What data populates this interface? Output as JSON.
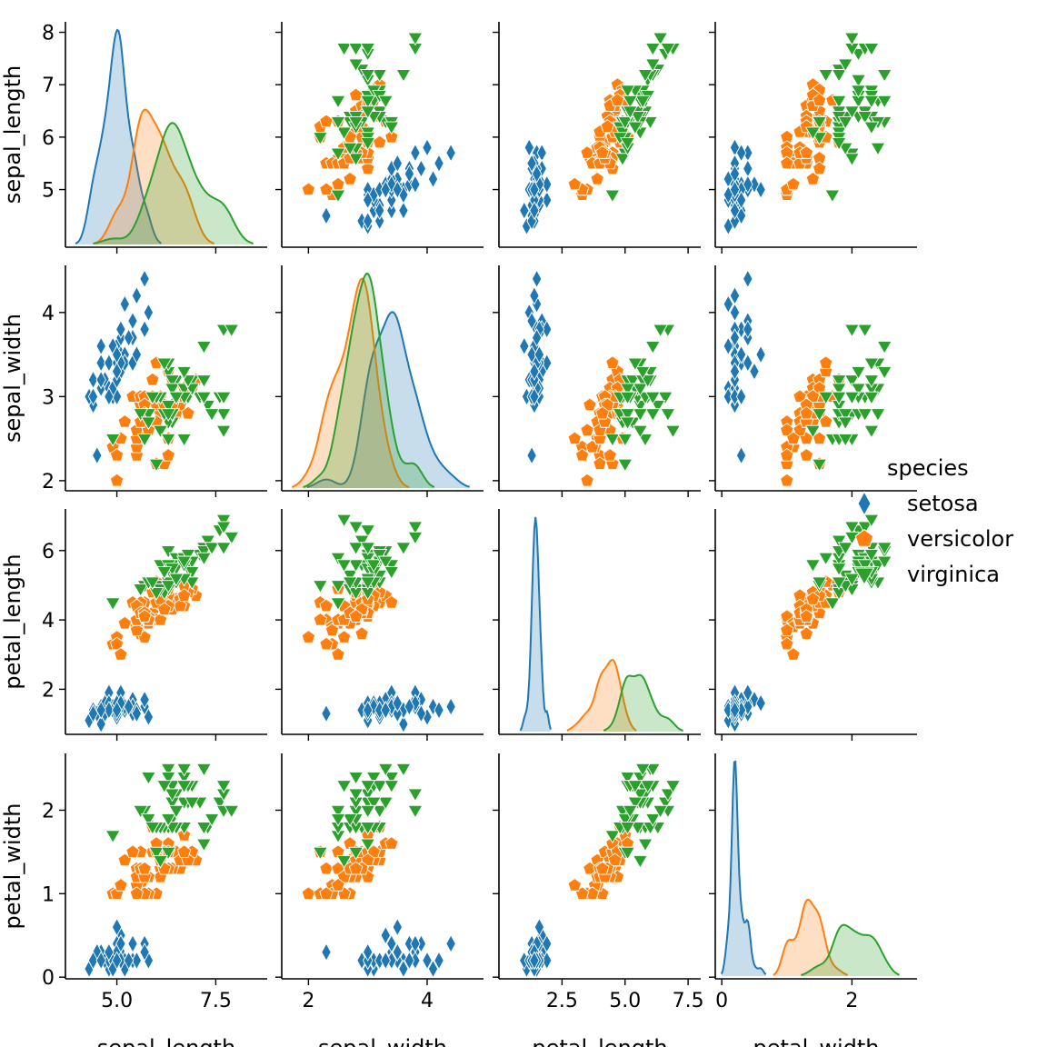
{
  "chart_data": {
    "type": "scatter",
    "kind": "pairplot",
    "variables": [
      "sepal_length",
      "sepal_width",
      "petal_length",
      "petal_width"
    ],
    "diagonal": "kde",
    "grid": false,
    "legend": {
      "title": "species",
      "position": "right",
      "entries": [
        {
          "name": "setosa",
          "color": "#1f77b4",
          "marker": "thin-diamond"
        },
        {
          "name": "versicolor",
          "color": "#ff7f0e",
          "marker": "pentagon"
        },
        {
          "name": "virginica",
          "color": "#2ca02c",
          "marker": "triangle-down"
        }
      ]
    },
    "axes": {
      "sepal_length": {
        "label": "sepal_length",
        "lim": [
          3.9,
          8.2
        ],
        "row_ticks": [
          5,
          6,
          7,
          8
        ],
        "col_ticks": [
          5.0,
          7.5
        ],
        "col_tick_labels": [
          "5.0",
          "7.5"
        ],
        "col_lim": [
          3.7,
          8.8
        ]
      },
      "sepal_width": {
        "label": "sepal_width",
        "lim": [
          1.88,
          4.56
        ],
        "row_ticks": [
          2,
          3,
          4
        ],
        "col_ticks": [
          2,
          4
        ],
        "col_tick_labels": [
          "2",
          "4"
        ],
        "col_lim": [
          1.55,
          4.95
        ]
      },
      "petal_length": {
        "label": "petal_length",
        "lim": [
          0.7,
          7.2
        ],
        "row_ticks": [
          2,
          4,
          6
        ],
        "col_ticks": [
          2.5,
          5.0,
          7.5
        ],
        "col_tick_labels": [
          "2.5",
          "5.0",
          "7.5"
        ],
        "col_lim": [
          0.0,
          8.0
        ]
      },
      "petal_width": {
        "label": "petal_width",
        "lim": [
          -0.02,
          2.68
        ],
        "row_ticks": [
          0,
          1,
          2
        ],
        "col_ticks": [
          0,
          2
        ],
        "col_tick_labels": [
          "0",
          "2"
        ],
        "col_lim": [
          -0.1,
          3.0
        ]
      }
    },
    "series": [
      {
        "name": "setosa",
        "sepal_length": [
          5.1,
          4.9,
          4.7,
          4.6,
          5.0,
          5.4,
          4.6,
          5.0,
          4.4,
          4.9,
          5.4,
          4.8,
          4.8,
          4.3,
          5.8,
          5.7,
          5.4,
          5.1,
          5.7,
          5.1,
          5.4,
          5.1,
          4.6,
          5.1,
          4.8,
          5.0,
          5.0,
          5.2,
          5.2,
          4.7,
          4.8,
          5.4,
          5.2,
          5.5,
          4.9,
          5.0,
          5.5,
          4.9,
          4.4,
          5.1,
          5.0,
          4.5,
          4.4,
          5.0,
          5.1,
          4.8,
          5.1,
          4.6,
          5.3,
          5.0
        ],
        "sepal_width": [
          3.5,
          3.0,
          3.2,
          3.1,
          3.6,
          3.9,
          3.4,
          3.4,
          2.9,
          3.1,
          3.7,
          3.4,
          3.0,
          3.0,
          4.0,
          4.4,
          3.9,
          3.5,
          3.8,
          3.8,
          3.4,
          3.7,
          3.6,
          3.3,
          3.4,
          3.0,
          3.4,
          3.5,
          3.4,
          3.2,
          3.1,
          3.4,
          4.1,
          4.2,
          3.1,
          3.2,
          3.5,
          3.6,
          3.0,
          3.4,
          3.5,
          2.3,
          3.2,
          3.5,
          3.8,
          3.0,
          3.8,
          3.2,
          3.7,
          3.3
        ],
        "petal_length": [
          1.4,
          1.4,
          1.3,
          1.5,
          1.4,
          1.7,
          1.4,
          1.5,
          1.4,
          1.5,
          1.5,
          1.6,
          1.4,
          1.1,
          1.2,
          1.5,
          1.3,
          1.4,
          1.7,
          1.5,
          1.7,
          1.5,
          1.0,
          1.7,
          1.9,
          1.6,
          1.6,
          1.5,
          1.4,
          1.6,
          1.6,
          1.5,
          1.5,
          1.4,
          1.5,
          1.2,
          1.3,
          1.4,
          1.3,
          1.5,
          1.3,
          1.3,
          1.3,
          1.6,
          1.9,
          1.4,
          1.6,
          1.4,
          1.5,
          1.4
        ],
        "petal_width": [
          0.2,
          0.2,
          0.2,
          0.2,
          0.2,
          0.4,
          0.3,
          0.2,
          0.2,
          0.1,
          0.2,
          0.2,
          0.1,
          0.1,
          0.2,
          0.4,
          0.4,
          0.3,
          0.3,
          0.3,
          0.2,
          0.4,
          0.2,
          0.5,
          0.2,
          0.2,
          0.4,
          0.2,
          0.2,
          0.2,
          0.2,
          0.4,
          0.1,
          0.2,
          0.2,
          0.2,
          0.2,
          0.1,
          0.2,
          0.2,
          0.3,
          0.3,
          0.2,
          0.6,
          0.4,
          0.3,
          0.2,
          0.2,
          0.2,
          0.2
        ]
      },
      {
        "name": "versicolor",
        "sepal_length": [
          7.0,
          6.4,
          6.9,
          5.5,
          6.5,
          5.7,
          6.3,
          4.9,
          6.6,
          5.2,
          5.0,
          5.9,
          6.0,
          6.1,
          5.6,
          6.7,
          5.6,
          5.8,
          6.2,
          5.6,
          5.9,
          6.1,
          6.3,
          6.1,
          6.4,
          6.6,
          6.8,
          6.7,
          6.0,
          5.7,
          5.5,
          5.5,
          5.8,
          6.0,
          5.4,
          6.0,
          6.7,
          6.3,
          5.6,
          5.5,
          5.5,
          6.1,
          5.8,
          5.0,
          5.6,
          5.7,
          5.7,
          6.2,
          5.1,
          5.7
        ],
        "sepal_width": [
          3.2,
          3.2,
          3.1,
          2.3,
          2.8,
          2.8,
          3.3,
          2.4,
          2.9,
          2.7,
          2.0,
          3.0,
          2.2,
          2.9,
          2.9,
          3.1,
          3.0,
          2.7,
          2.2,
          2.5,
          3.2,
          2.8,
          2.5,
          2.8,
          2.9,
          3.0,
          2.8,
          3.0,
          2.9,
          2.6,
          2.4,
          2.4,
          2.7,
          2.7,
          3.0,
          3.4,
          3.1,
          2.3,
          3.0,
          2.5,
          2.6,
          3.0,
          2.6,
          2.3,
          2.7,
          3.0,
          2.9,
          2.9,
          2.5,
          2.8
        ],
        "petal_length": [
          4.7,
          4.5,
          4.9,
          4.0,
          4.6,
          4.5,
          4.7,
          3.3,
          4.6,
          3.9,
          3.5,
          4.2,
          4.0,
          4.7,
          3.6,
          4.4,
          4.5,
          4.1,
          4.5,
          3.9,
          4.8,
          4.0,
          4.9,
          4.7,
          4.3,
          4.4,
          4.8,
          5.0,
          4.5,
          3.5,
          3.8,
          3.7,
          3.9,
          5.1,
          4.5,
          4.5,
          4.7,
          4.4,
          4.1,
          4.0,
          4.4,
          4.6,
          4.0,
          3.3,
          4.2,
          4.2,
          4.2,
          4.3,
          3.0,
          4.1
        ],
        "petal_width": [
          1.4,
          1.5,
          1.5,
          1.3,
          1.5,
          1.3,
          1.6,
          1.0,
          1.3,
          1.4,
          1.0,
          1.5,
          1.0,
          1.4,
          1.3,
          1.4,
          1.5,
          1.0,
          1.5,
          1.1,
          1.8,
          1.3,
          1.5,
          1.2,
          1.3,
          1.4,
          1.4,
          1.7,
          1.5,
          1.0,
          1.1,
          1.0,
          1.2,
          1.6,
          1.5,
          1.6,
          1.5,
          1.3,
          1.3,
          1.3,
          1.2,
          1.4,
          1.2,
          1.0,
          1.3,
          1.2,
          1.3,
          1.3,
          1.1,
          1.3
        ]
      },
      {
        "name": "virginica",
        "sepal_length": [
          6.3,
          5.8,
          7.1,
          6.3,
          6.5,
          7.6,
          4.9,
          7.3,
          6.7,
          7.2,
          6.5,
          6.4,
          6.8,
          5.7,
          5.8,
          6.4,
          6.5,
          7.7,
          7.7,
          6.0,
          6.9,
          5.6,
          7.7,
          6.3,
          6.7,
          7.2,
          6.2,
          6.1,
          6.4,
          7.2,
          7.4,
          7.9,
          6.4,
          6.3,
          6.1,
          7.7,
          6.3,
          6.4,
          6.0,
          6.9,
          6.7,
          6.9,
          5.8,
          6.8,
          6.7,
          6.7,
          6.3,
          6.5,
          6.2,
          5.9
        ],
        "sepal_width": [
          3.3,
          2.7,
          3.0,
          2.9,
          3.0,
          3.0,
          2.5,
          2.9,
          2.5,
          3.6,
          3.2,
          2.7,
          3.0,
          2.5,
          2.8,
          3.2,
          3.0,
          3.8,
          2.6,
          2.2,
          3.2,
          2.8,
          2.8,
          2.7,
          3.3,
          3.2,
          2.8,
          3.0,
          2.8,
          3.0,
          2.8,
          3.8,
          2.8,
          2.8,
          2.6,
          3.0,
          3.4,
          3.1,
          3.0,
          3.1,
          3.1,
          3.1,
          2.7,
          3.2,
          3.3,
          3.0,
          2.5,
          3.0,
          3.4,
          3.0
        ],
        "petal_length": [
          6.0,
          5.1,
          5.9,
          5.6,
          5.8,
          6.6,
          4.5,
          6.3,
          5.8,
          6.1,
          5.1,
          5.3,
          5.5,
          5.0,
          5.1,
          5.3,
          5.5,
          6.7,
          6.9,
          5.0,
          5.7,
          4.9,
          6.7,
          4.9,
          5.7,
          6.0,
          4.8,
          4.9,
          5.6,
          5.8,
          6.1,
          6.4,
          5.6,
          5.1,
          5.6,
          6.1,
          5.6,
          5.5,
          4.8,
          5.4,
          5.6,
          5.1,
          5.1,
          5.9,
          5.7,
          5.2,
          5.0,
          5.2,
          5.4,
          5.1
        ],
        "petal_width": [
          2.5,
          1.9,
          2.1,
          1.8,
          2.2,
          2.1,
          1.7,
          1.8,
          1.8,
          2.5,
          2.0,
          1.9,
          2.1,
          2.0,
          2.4,
          2.3,
          1.8,
          2.2,
          2.3,
          1.5,
          2.3,
          2.0,
          2.0,
          1.8,
          2.1,
          1.8,
          1.8,
          1.8,
          2.1,
          1.6,
          1.9,
          2.0,
          2.2,
          1.5,
          1.4,
          2.3,
          2.4,
          1.8,
          1.8,
          2.1,
          2.4,
          2.3,
          1.9,
          2.3,
          2.5,
          2.3,
          1.9,
          2.0,
          2.3,
          1.8
        ]
      }
    ]
  }
}
